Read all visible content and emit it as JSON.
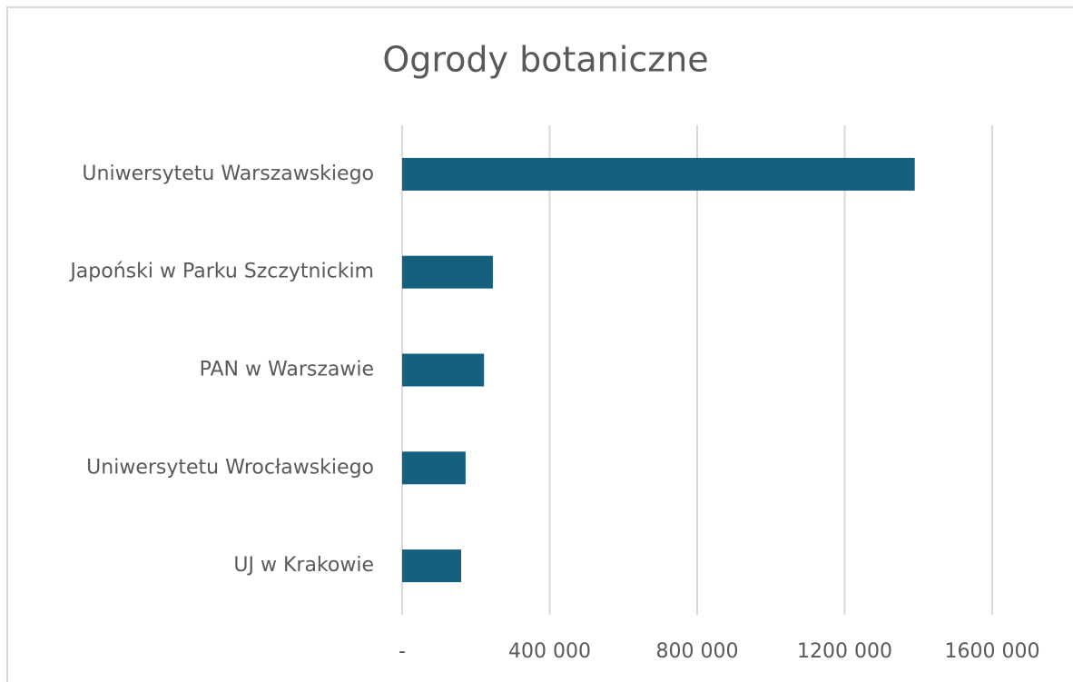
{
  "chart_data": {
    "type": "barh",
    "title": "Ogrody botaniczne",
    "categories": [
      "Uniwersytetu Warszawskiego",
      "Japoński w Parku Szczytnickim",
      "PAN w Warszawie",
      "Uniwersytetu Wrocławskiego",
      "UJ w Krakowie"
    ],
    "values": [
      1390000,
      246000,
      222000,
      172000,
      160000
    ],
    "color": "#16607f",
    "xlim": [
      0,
      1600000
    ],
    "xticks": [
      {
        "value": 0,
        "label": "-"
      },
      {
        "value": 400000,
        "label": "400 000"
      },
      {
        "value": 800000,
        "label": "800 000"
      },
      {
        "value": 1200000,
        "label": "1200 000"
      },
      {
        "value": 1600000,
        "label": "1600 000"
      }
    ],
    "grid": true
  }
}
